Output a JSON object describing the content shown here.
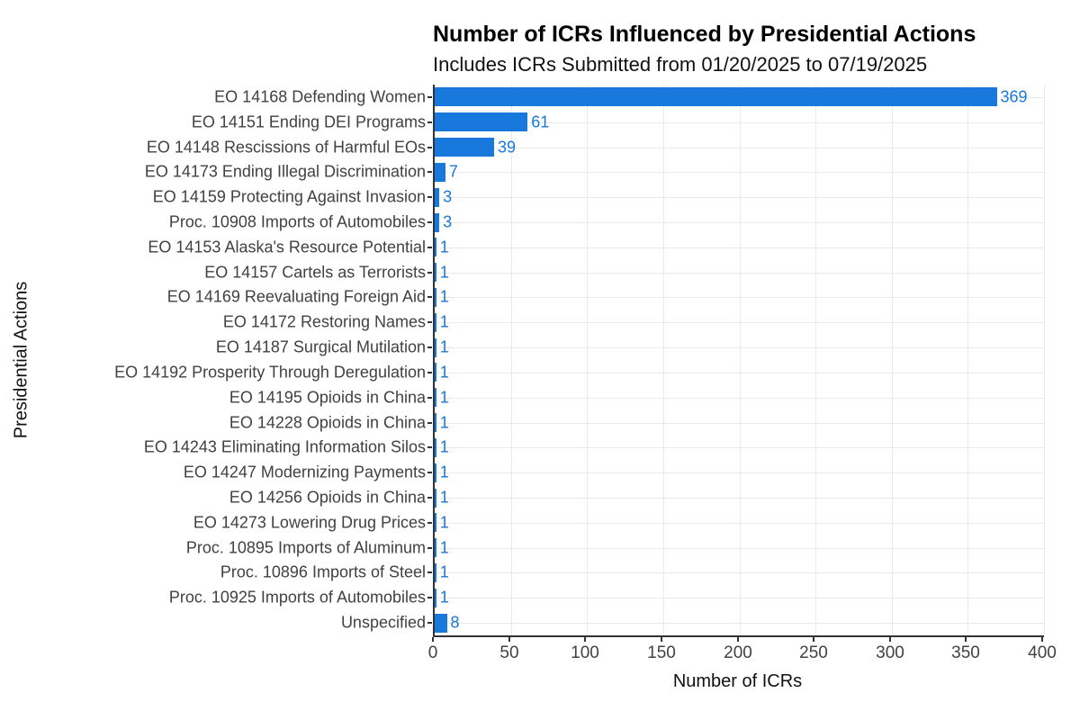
{
  "chart_data": {
    "type": "bar",
    "orientation": "horizontal",
    "title": "Number of ICRs Influenced by Presidential Actions",
    "subtitle": "Includes ICRs Submitted from 01/20/2025 to 07/19/2025",
    "xlabel": "Number of ICRs",
    "ylabel": "Presidential Actions",
    "categories": [
      "EO 14168 Defending Women",
      "EO 14151 Ending DEI Programs",
      "EO 14148 Rescissions of Harmful EOs",
      "EO 14173 Ending Illegal Discrimination",
      "EO 14159 Protecting Against Invasion",
      "Proc. 10908 Imports of Automobiles",
      "EO 14153 Alaska's Resource Potential",
      "EO 14157 Cartels as Terrorists",
      "EO 14169 Reevaluating Foreign Aid",
      "EO 14172 Restoring Names",
      "EO 14187 Surgical Mutilation",
      "EO 14192 Prosperity Through Deregulation",
      "EO 14195 Opioids in China",
      "EO 14228 Opioids in China",
      "EO 14243 Eliminating Information Silos",
      "EO 14247 Modernizing Payments",
      "EO 14256 Opioids in China",
      "EO 14273 Lowering Drug Prices",
      "Proc. 10895 Imports of Aluminum",
      "Proc. 10896 Imports of Steel",
      "Proc. 10925 Imports of Automobiles",
      "Unspecified"
    ],
    "values": [
      369,
      61,
      39,
      7,
      3,
      3,
      1,
      1,
      1,
      1,
      1,
      1,
      1,
      1,
      1,
      1,
      1,
      1,
      1,
      1,
      1,
      8
    ],
    "xlim": [
      0,
      400
    ],
    "xticks": [
      0,
      50,
      100,
      150,
      200,
      250,
      300,
      350,
      400
    ],
    "grid": "on",
    "legend": "none",
    "bar_color": "#1878DC",
    "value_label_color": "#1878DC"
  },
  "colors": {
    "background": "#ffffff",
    "gridline": "#e9e9e9",
    "axis_line": "#333333",
    "axis_text": "#414141",
    "title_text": "#000000"
  }
}
